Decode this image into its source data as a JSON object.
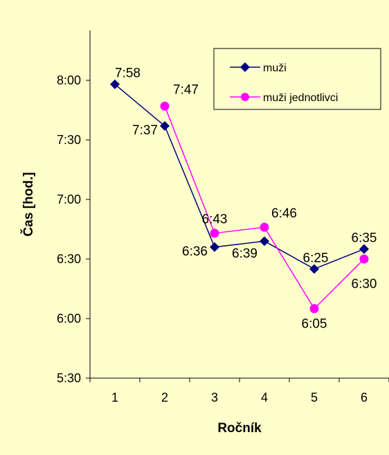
{
  "chart_data": {
    "type": "line",
    "title": "",
    "xlabel": "Ročník",
    "ylabel": "Čas [hod.]",
    "x": [
      1,
      2,
      3,
      4,
      5,
      6
    ],
    "x_tick_labels": [
      "1",
      "2",
      "3",
      "4",
      "5",
      "6"
    ],
    "y_tick_labels": [
      "5:30",
      "6:00",
      "6:30",
      "7:00",
      "7:30",
      "8:00"
    ],
    "ylim": [
      "5:30",
      "8:30"
    ],
    "grid": false,
    "legend_position": "top-right",
    "series": [
      {
        "name": "muži",
        "color": "#000080",
        "marker": "diamond",
        "values": [
          "7:58",
          "7:37",
          "6:36",
          "6:39",
          "6:25",
          "6:35"
        ],
        "labels": [
          "7:58",
          "7:37",
          "6:36",
          "6:39",
          "6:25",
          "6:35"
        ]
      },
      {
        "name": "muži jednotlivci",
        "color": "#FF00FF",
        "marker": "circle",
        "x": [
          2,
          3,
          4,
          5,
          6
        ],
        "values": [
          "7:47",
          "6:43",
          "6:46",
          "6:05",
          "6:30"
        ],
        "labels": [
          "7:47",
          "6:43",
          "6:46",
          "6:05",
          "6:30"
        ]
      }
    ]
  }
}
